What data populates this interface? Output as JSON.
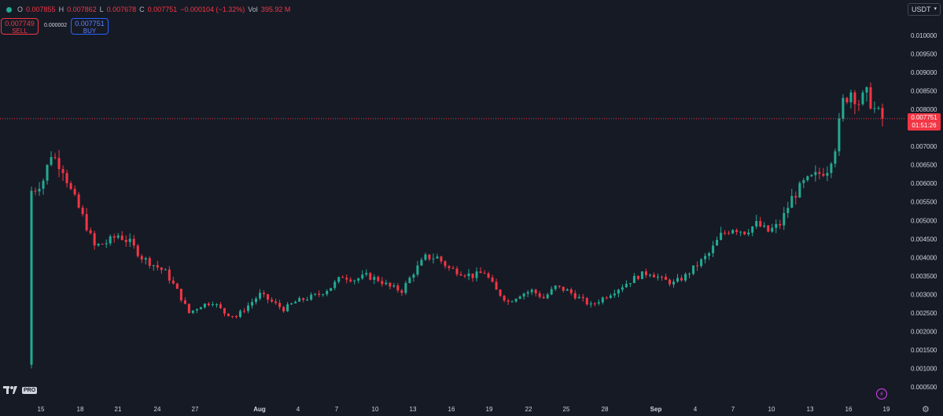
{
  "header": {
    "open_label": "O",
    "open": "0.007855",
    "high_label": "H",
    "high": "0.007862",
    "low_label": "L",
    "low": "0.007678",
    "close_label": "C",
    "close": "0.007751",
    "change": "−0.000104 (−1.32%)",
    "vol_label": "Vol",
    "vol": "395.92 M"
  },
  "trade": {
    "sell_price": "0.007749",
    "sell_label": "SELL",
    "spread": "0.000002",
    "buy_price": "0.007751",
    "buy_label": "BUY"
  },
  "currency": {
    "label": "USDT"
  },
  "last_price": {
    "price": "0.007751",
    "countdown": "01:51:26"
  },
  "logo": {
    "pro_label": "PRO"
  },
  "colors": {
    "background": "#161a25",
    "up": "#22ab94",
    "down": "#f23645",
    "axis_text": "#d1d4dc",
    "price_line": "#f23645"
  },
  "icons": {
    "settings": "gear-icon",
    "alert": "bolt-icon",
    "logo": "tradingview-logo-icon",
    "dropdown": "chevron-down-icon"
  },
  "chart_data": {
    "type": "candlestick",
    "y_ticks": [
      "0.010000",
      "0.009500",
      "0.009000",
      "0.008500",
      "0.008000",
      "0.007000",
      "0.006500",
      "0.006000",
      "0.005500",
      "0.005000",
      "0.004500",
      "0.004000",
      "0.003500",
      "0.003000",
      "0.002500",
      "0.002000",
      "0.001500",
      "0.001000",
      "0.000500"
    ],
    "x_ticks": [
      "15",
      "18",
      "21",
      "24",
      "27",
      "Aug",
      "4",
      "7",
      "10",
      "13",
      "16",
      "19",
      "22",
      "25",
      "28",
      "Sep",
      "4",
      "7",
      "10",
      "13",
      "16",
      "19"
    ],
    "ylim": [
      0.0004,
      0.0104
    ],
    "x_range": [
      0,
      216
    ],
    "last_price": 0.007751,
    "anchors": [
      [
        0.0,
        0.0011
      ],
      [
        0.5,
        0.0058
      ],
      [
        3.0,
        0.0061
      ],
      [
        5.0,
        0.0068
      ],
      [
        8.0,
        0.0064
      ],
      [
        10.0,
        0.0058
      ],
      [
        13.0,
        0.0051
      ],
      [
        16.0,
        0.0043
      ],
      [
        19.0,
        0.0044
      ],
      [
        22.0,
        0.0046
      ],
      [
        25.0,
        0.0044
      ],
      [
        28.0,
        0.004
      ],
      [
        31.0,
        0.0038
      ],
      [
        34.0,
        0.0036
      ],
      [
        37.0,
        0.0031
      ],
      [
        40.0,
        0.0025
      ],
      [
        43.0,
        0.0027
      ],
      [
        46.0,
        0.0028
      ],
      [
        49.0,
        0.0025
      ],
      [
        52.0,
        0.0024
      ],
      [
        55.0,
        0.0027
      ],
      [
        58.0,
        0.003
      ],
      [
        61.0,
        0.0028
      ],
      [
        64.0,
        0.0026
      ],
      [
        67.0,
        0.0028
      ],
      [
        70.0,
        0.0029
      ],
      [
        73.0,
        0.003
      ],
      [
        76.0,
        0.0032
      ],
      [
        79.0,
        0.0035
      ],
      [
        82.0,
        0.0034
      ],
      [
        85.0,
        0.0035
      ],
      [
        88.0,
        0.0034
      ],
      [
        91.0,
        0.0032
      ],
      [
        94.0,
        0.0031
      ],
      [
        97.0,
        0.0036
      ],
      [
        100.0,
        0.004
      ],
      [
        103.0,
        0.004
      ],
      [
        106.0,
        0.0037
      ],
      [
        109.0,
        0.0036
      ],
      [
        112.0,
        0.0035
      ],
      [
        115.0,
        0.0036
      ],
      [
        118.0,
        0.0031
      ],
      [
        121.0,
        0.0028
      ],
      [
        124.0,
        0.003
      ],
      [
        127.0,
        0.0031
      ],
      [
        130.0,
        0.0029
      ],
      [
        133.0,
        0.0032
      ],
      [
        136.0,
        0.0031
      ],
      [
        139.0,
        0.0029
      ],
      [
        142.0,
        0.0027
      ],
      [
        145.0,
        0.0029
      ],
      [
        148.0,
        0.0031
      ],
      [
        151.0,
        0.0033
      ],
      [
        154.0,
        0.0035
      ],
      [
        157.0,
        0.0036
      ],
      [
        160.0,
        0.0034
      ],
      [
        163.0,
        0.0033
      ],
      [
        166.0,
        0.0035
      ],
      [
        169.0,
        0.0038
      ],
      [
        172.0,
        0.0041
      ],
      [
        175.0,
        0.0046
      ],
      [
        178.0,
        0.0048
      ],
      [
        181.0,
        0.0047
      ],
      [
        184.0,
        0.0049
      ],
      [
        187.0,
        0.0047
      ],
      [
        190.0,
        0.0049
      ],
      [
        193.0,
        0.0056
      ],
      [
        196.0,
        0.006
      ],
      [
        199.0,
        0.0062
      ],
      [
        202.0,
        0.0064
      ],
      [
        204.0,
        0.007
      ],
      [
        206.0,
        0.0082
      ],
      [
        208.0,
        0.0085
      ],
      [
        210.0,
        0.0082
      ],
      [
        212.0,
        0.0084
      ],
      [
        214.0,
        0.008
      ],
      [
        216.0,
        0.00775
      ]
    ]
  }
}
